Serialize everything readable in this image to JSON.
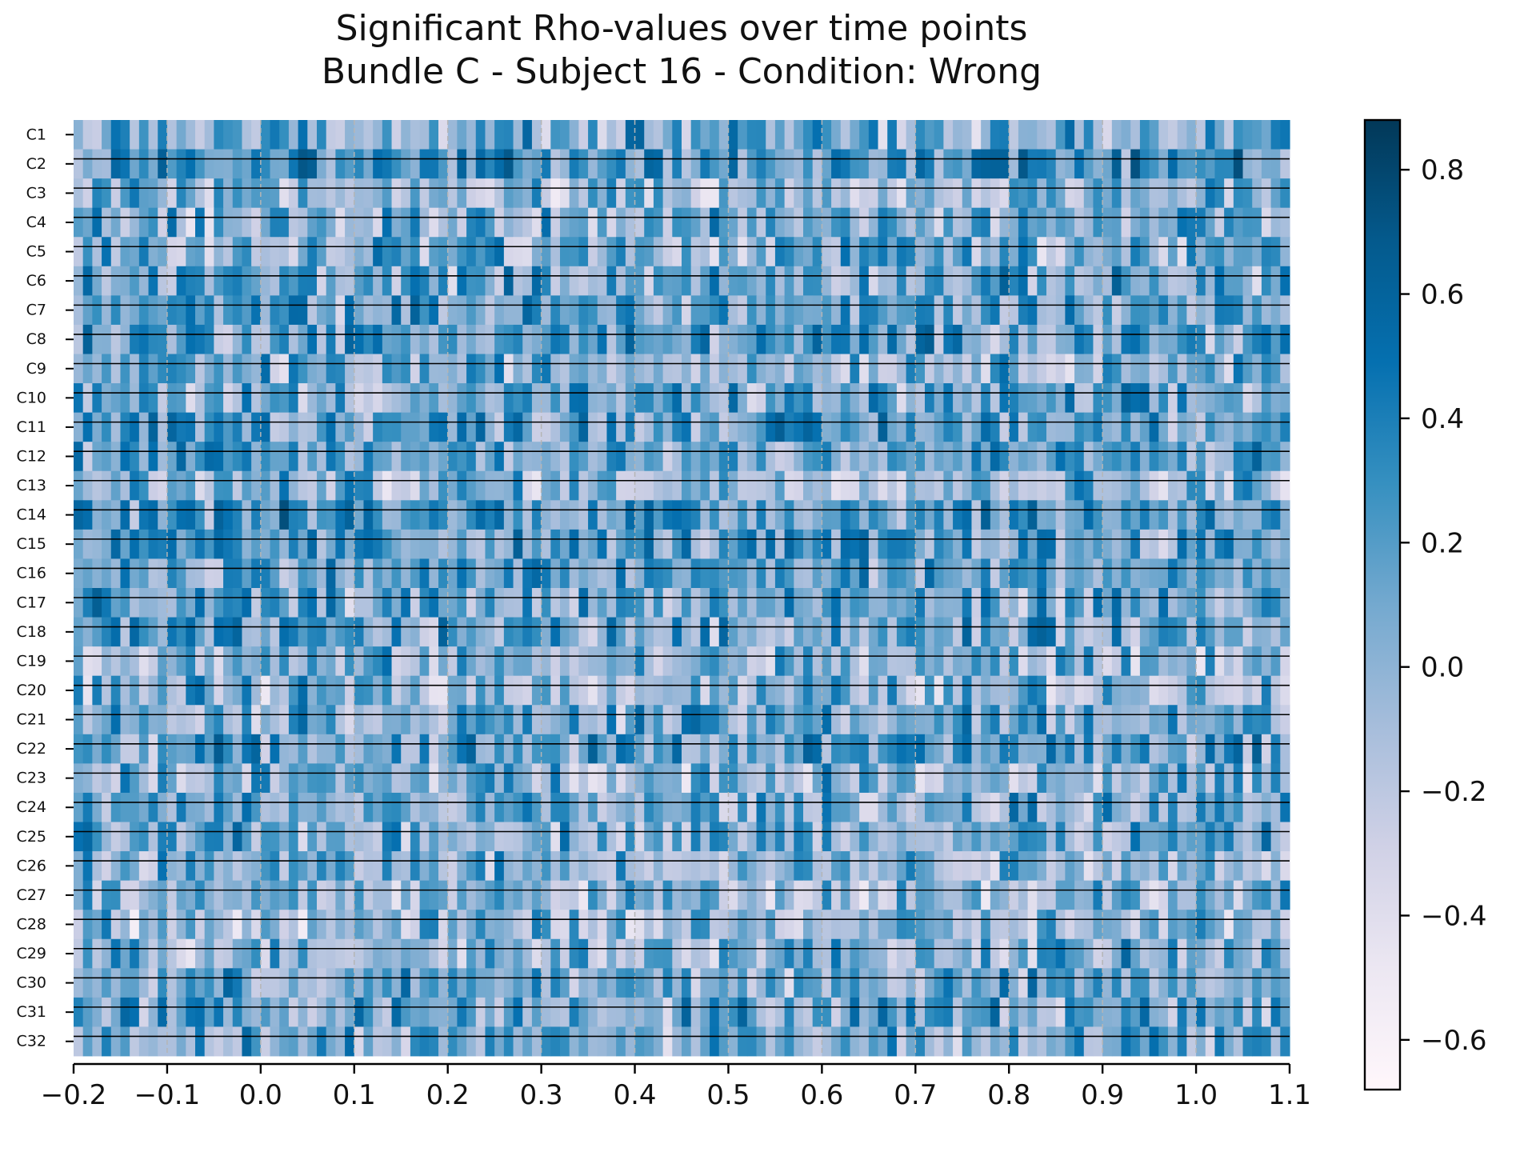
{
  "chart_data": {
    "type": "heatmap",
    "title_lines": [
      "Significant Rho-values over time points",
      "Bundle C - Subject 16 - Condition: Wrong"
    ],
    "xlabel": "",
    "ylabel": "",
    "x_range": [
      -0.2,
      1.1
    ],
    "x_ticks": [
      -0.2,
      -0.1,
      0.0,
      0.1,
      0.2,
      0.3,
      0.4,
      0.5,
      0.6,
      0.7,
      0.8,
      0.9,
      1.0,
      1.1
    ],
    "x_tick_labels": [
      "−0.2",
      "−0.1",
      "0.0",
      "0.1",
      "0.2",
      "0.3",
      "0.4",
      "0.5",
      "0.6",
      "0.7",
      "0.8",
      "0.9",
      "1.0",
      "1.1"
    ],
    "time_bins": 130,
    "rows": [
      "C1",
      "C2",
      "C3",
      "C4",
      "C5",
      "C6",
      "C7",
      "C8",
      "C9",
      "C10",
      "C11",
      "C12",
      "C13",
      "C14",
      "C15",
      "C16",
      "C17",
      "C18",
      "C19",
      "C20",
      "C21",
      "C22",
      "C23",
      "C24",
      "C25",
      "C26",
      "C27",
      "C28",
      "C29",
      "C30",
      "C31",
      "C32"
    ],
    "vertical_reference_lines": [
      -0.1,
      0.0,
      0.1,
      0.2,
      0.3,
      0.4,
      0.5,
      0.6,
      0.7,
      0.8,
      0.9,
      1.0
    ],
    "row_separators": true,
    "colormap": "PuBu",
    "colormap_stops": [
      "#fff7fb",
      "#ece7f2",
      "#d0d1e6",
      "#a6bddb",
      "#74a9cf",
      "#3690c0",
      "#0570b0",
      "#045a8d",
      "#023858"
    ],
    "value_range": [
      -0.68,
      0.88
    ],
    "colorbar": {
      "ticks": [
        0.8,
        0.6,
        0.4,
        0.2,
        0.0,
        -0.2,
        -0.4,
        -0.6
      ],
      "tick_labels": [
        "0.8",
        "0.6",
        "0.4",
        "0.2",
        "0.0",
        "−0.2",
        "−0.4",
        "−0.6"
      ]
    },
    "grid": false,
    "legend": "colorbar-right",
    "row_mean_values": [
      0.1,
      0.22,
      0.0,
      0.05,
      0.04,
      0.12,
      0.14,
      0.18,
      0.06,
      0.08,
      0.2,
      0.14,
      0.02,
      0.24,
      0.16,
      0.14,
      0.1,
      0.12,
      0.0,
      0.0,
      0.1,
      0.16,
      0.04,
      0.06,
      0.08,
      0.04,
      0.0,
      -0.06,
      0.04,
      0.08,
      0.14,
      0.1
    ]
  }
}
